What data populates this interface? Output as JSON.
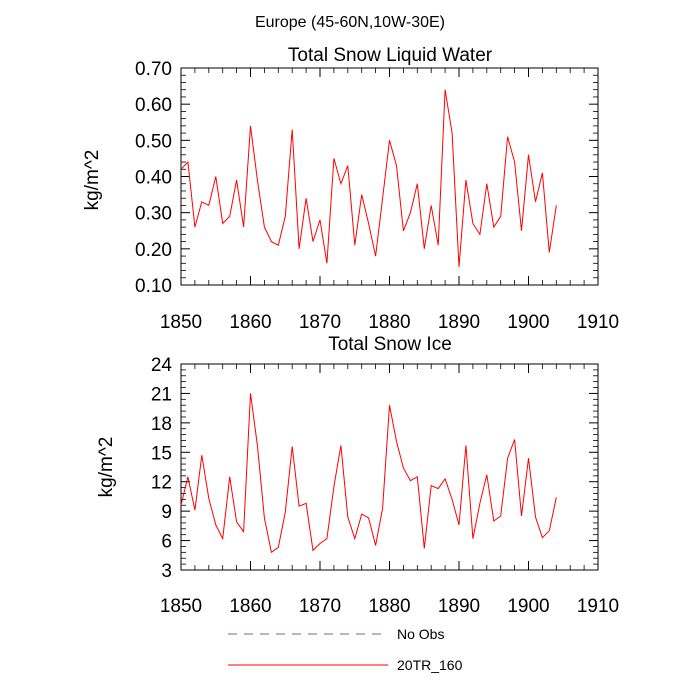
{
  "figure_title": "Europe (45-60N,10W-30E)",
  "chart_data": [
    {
      "type": "line",
      "title": "Total Snow Liquid Water",
      "xlabel": "",
      "ylabel": "kg/m^2",
      "xlim": [
        1850,
        1910
      ],
      "ylim": [
        0.1,
        0.7
      ],
      "xticks": [
        1850,
        1860,
        1870,
        1880,
        1890,
        1900,
        1910
      ],
      "xtick_labels": [
        "1850",
        "1860",
        "1870",
        "1880",
        "1890",
        "1900",
        "1910"
      ],
      "yticks": [
        0.1,
        0.2,
        0.3,
        0.4,
        0.5,
        0.6,
        0.7
      ],
      "ytick_labels": [
        "0.10",
        "0.20",
        "0.30",
        "0.40",
        "0.50",
        "0.60",
        "0.70"
      ],
      "series": [
        {
          "name": "20TR_160",
          "color": "#ff0000",
          "x": [
            1850,
            1851,
            1852,
            1853,
            1854,
            1855,
            1856,
            1857,
            1858,
            1859,
            1860,
            1861,
            1862,
            1863,
            1864,
            1865,
            1866,
            1867,
            1868,
            1869,
            1870,
            1871,
            1872,
            1873,
            1874,
            1875,
            1876,
            1877,
            1878,
            1879,
            1880,
            1881,
            1882,
            1883,
            1884,
            1885,
            1886,
            1887,
            1888,
            1889,
            1890,
            1891,
            1892,
            1893,
            1894,
            1895,
            1896,
            1897,
            1898,
            1899,
            1900,
            1901,
            1902,
            1903,
            1904
          ],
          "values": [
            0.42,
            0.44,
            0.26,
            0.33,
            0.32,
            0.4,
            0.27,
            0.29,
            0.39,
            0.26,
            0.54,
            0.39,
            0.26,
            0.22,
            0.21,
            0.29,
            0.53,
            0.2,
            0.34,
            0.22,
            0.28,
            0.16,
            0.45,
            0.38,
            0.43,
            0.21,
            0.35,
            0.27,
            0.18,
            0.34,
            0.5,
            0.43,
            0.25,
            0.3,
            0.38,
            0.2,
            0.32,
            0.21,
            0.64,
            0.52,
            0.15,
            0.39,
            0.27,
            0.24,
            0.38,
            0.26,
            0.29,
            0.51,
            0.44,
            0.25,
            0.46,
            0.33,
            0.41,
            0.19,
            0.32
          ]
        }
      ]
    },
    {
      "type": "line",
      "title": "Total Snow Ice",
      "xlabel": "",
      "ylabel": "kg/m^2",
      "xlim": [
        1850,
        1910
      ],
      "ylim": [
        3,
        24
      ],
      "xticks": [
        1850,
        1860,
        1870,
        1880,
        1890,
        1900,
        1910
      ],
      "xtick_labels": [
        "1850",
        "1860",
        "1870",
        "1880",
        "1890",
        "1900",
        "1910"
      ],
      "yticks": [
        3,
        6,
        9,
        12,
        15,
        18,
        21,
        24
      ],
      "ytick_labels": [
        "3",
        "6",
        "9",
        "12",
        "15",
        "18",
        "21",
        "24"
      ],
      "series": [
        {
          "name": "20TR_160",
          "color": "#ff0000",
          "x": [
            1850,
            1851,
            1852,
            1853,
            1854,
            1855,
            1856,
            1857,
            1858,
            1859,
            1860,
            1861,
            1862,
            1863,
            1864,
            1865,
            1866,
            1867,
            1868,
            1869,
            1870,
            1871,
            1872,
            1873,
            1874,
            1875,
            1876,
            1877,
            1878,
            1879,
            1880,
            1881,
            1882,
            1883,
            1884,
            1885,
            1886,
            1887,
            1888,
            1889,
            1890,
            1891,
            1892,
            1893,
            1894,
            1895,
            1896,
            1897,
            1898,
            1899,
            1900,
            1901,
            1902,
            1903,
            1904
          ],
          "values": [
            9.6,
            12.5,
            9.1,
            14.7,
            10.3,
            7.6,
            6.2,
            12.5,
            7.9,
            6.9,
            21.0,
            15.7,
            8.3,
            4.8,
            5.3,
            8.9,
            15.6,
            9.5,
            9.8,
            5.0,
            5.7,
            6.2,
            11.5,
            15.7,
            8.4,
            6.2,
            8.7,
            8.3,
            5.5,
            9.3,
            19.8,
            16.1,
            13.4,
            12.1,
            12.5,
            5.2,
            11.6,
            11.3,
            12.3,
            10.2,
            7.6,
            15.7,
            6.2,
            9.8,
            12.7,
            8.0,
            8.5,
            14.4,
            16.3,
            8.5,
            14.4,
            8.4,
            6.3,
            7.0,
            10.4
          ]
        }
      ]
    }
  ],
  "legend": {
    "items": [
      {
        "label": "No Obs",
        "color": "#6666cc",
        "style": "dashed"
      },
      {
        "label": "20TR_160",
        "color": "#ff0000",
        "style": "solid"
      }
    ]
  }
}
